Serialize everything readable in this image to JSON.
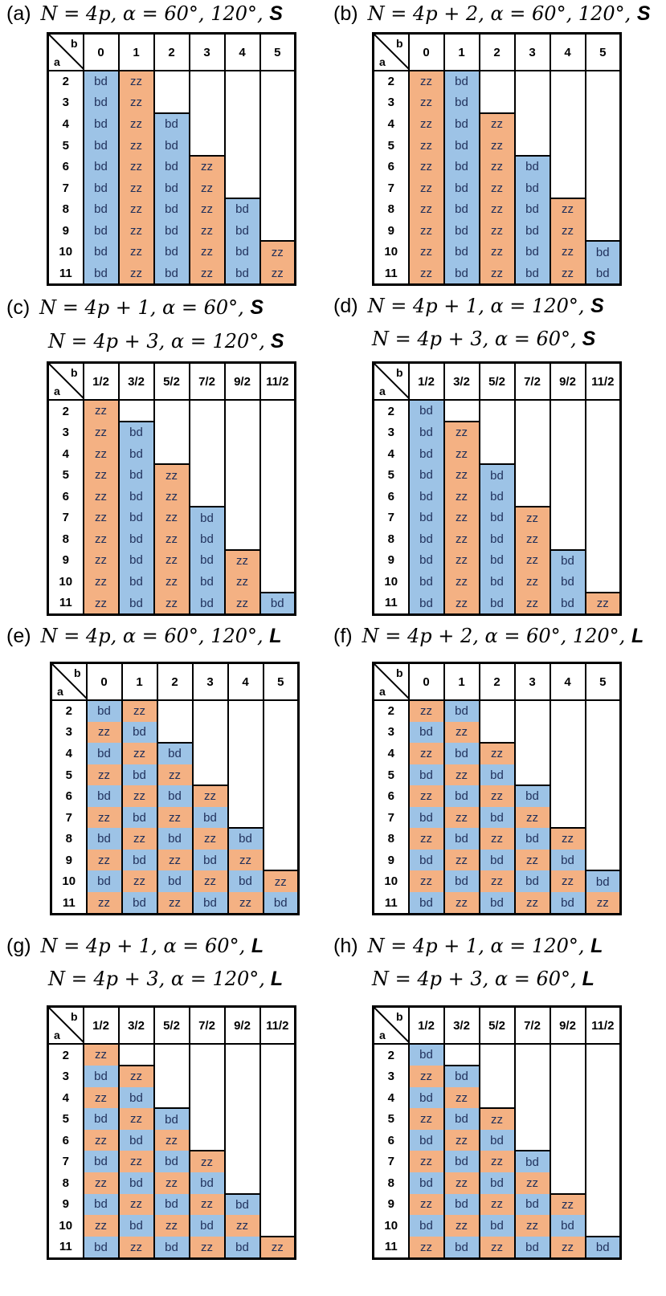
{
  "colors": {
    "bd": "#9dc3e6",
    "zz": "#f4b183",
    "empty": "#ffffff"
  },
  "rows": [
    "2",
    "3",
    "4",
    "5",
    "6",
    "7",
    "8",
    "9",
    "10",
    "11"
  ],
  "int_cols": [
    "0",
    "1",
    "2",
    "3",
    "4",
    "5"
  ],
  "half_cols": [
    "1/2",
    "3/2",
    "5/2",
    "7/2",
    "9/2",
    "11/2"
  ],
  "corner": {
    "a": "a",
    "b": "b"
  },
  "panels": [
    {
      "label": "(a)",
      "eq1": "N = 4p, α = 60°, 120°,",
      "suf1": "S",
      "eq2": "",
      "suf2": "",
      "cols": "int",
      "cells": [
        [
          "bd",
          "zz",
          "",
          "",
          "",
          ""
        ],
        [
          "bd",
          "zz",
          "",
          "",
          "",
          ""
        ],
        [
          "bd",
          "zz",
          "bd",
          "",
          "",
          ""
        ],
        [
          "bd",
          "zz",
          "bd",
          "",
          "",
          ""
        ],
        [
          "bd",
          "zz",
          "bd",
          "zz",
          "",
          ""
        ],
        [
          "bd",
          "zz",
          "bd",
          "zz",
          "",
          ""
        ],
        [
          "bd",
          "zz",
          "bd",
          "zz",
          "bd",
          ""
        ],
        [
          "bd",
          "zz",
          "bd",
          "zz",
          "bd",
          ""
        ],
        [
          "bd",
          "zz",
          "bd",
          "zz",
          "bd",
          "zz"
        ],
        [
          "bd",
          "zz",
          "bd",
          "zz",
          "bd",
          "zz"
        ]
      ]
    },
    {
      "label": "(b)",
      "eq1": "N = 4p + 2, α = 60°, 120°,",
      "suf1": "S",
      "eq2": "",
      "suf2": "",
      "cols": "int",
      "cells": [
        [
          "zz",
          "bd",
          "",
          "",
          "",
          ""
        ],
        [
          "zz",
          "bd",
          "",
          "",
          "",
          ""
        ],
        [
          "zz",
          "bd",
          "zz",
          "",
          "",
          ""
        ],
        [
          "zz",
          "bd",
          "zz",
          "",
          "",
          ""
        ],
        [
          "zz",
          "bd",
          "zz",
          "bd",
          "",
          ""
        ],
        [
          "zz",
          "bd",
          "zz",
          "bd",
          "",
          ""
        ],
        [
          "zz",
          "bd",
          "zz",
          "bd",
          "zz",
          ""
        ],
        [
          "zz",
          "bd",
          "zz",
          "bd",
          "zz",
          ""
        ],
        [
          "zz",
          "bd",
          "zz",
          "bd",
          "zz",
          "bd"
        ],
        [
          "zz",
          "bd",
          "zz",
          "bd",
          "zz",
          "bd"
        ]
      ]
    },
    {
      "label": "(c)",
      "eq1": "N = 4p + 1, α = 60°,",
      "suf1": "S",
      "eq2": "N = 4p + 3, α = 120°,",
      "suf2": "S",
      "cols": "half",
      "cells": [
        [
          "zz",
          "",
          "",
          "",
          "",
          ""
        ],
        [
          "zz",
          "bd",
          "",
          "",
          "",
          ""
        ],
        [
          "zz",
          "bd",
          "",
          "",
          "",
          ""
        ],
        [
          "zz",
          "bd",
          "zz",
          "",
          "",
          ""
        ],
        [
          "zz",
          "bd",
          "zz",
          "",
          "",
          ""
        ],
        [
          "zz",
          "bd",
          "zz",
          "bd",
          "",
          ""
        ],
        [
          "zz",
          "bd",
          "zz",
          "bd",
          "",
          ""
        ],
        [
          "zz",
          "bd",
          "zz",
          "bd",
          "zz",
          ""
        ],
        [
          "zz",
          "bd",
          "zz",
          "bd",
          "zz",
          ""
        ],
        [
          "zz",
          "bd",
          "zz",
          "bd",
          "zz",
          "bd"
        ]
      ]
    },
    {
      "label": "(d)",
      "eq1": "N = 4p + 1, α = 120°,",
      "suf1": "S",
      "eq2": "N = 4p + 3, α = 60°,",
      "suf2": "S",
      "cols": "half",
      "cells": [
        [
          "bd",
          "",
          "",
          "",
          "",
          ""
        ],
        [
          "bd",
          "zz",
          "",
          "",
          "",
          ""
        ],
        [
          "bd",
          "zz",
          "",
          "",
          "",
          ""
        ],
        [
          "bd",
          "zz",
          "bd",
          "",
          "",
          ""
        ],
        [
          "bd",
          "zz",
          "bd",
          "",
          "",
          ""
        ],
        [
          "bd",
          "zz",
          "bd",
          "zz",
          "",
          ""
        ],
        [
          "bd",
          "zz",
          "bd",
          "zz",
          "",
          ""
        ],
        [
          "bd",
          "zz",
          "bd",
          "zz",
          "bd",
          ""
        ],
        [
          "bd",
          "zz",
          "bd",
          "zz",
          "bd",
          ""
        ],
        [
          "bd",
          "zz",
          "bd",
          "zz",
          "bd",
          "zz"
        ]
      ]
    },
    {
      "label": "(e)",
      "eq1": "N = 4p, α = 60°, 120°,",
      "suf1": "L",
      "eq2": "",
      "suf2": "",
      "cols": "int",
      "cells": [
        [
          "bd",
          "zz",
          "",
          "",
          "",
          ""
        ],
        [
          "zz",
          "bd",
          "",
          "",
          "",
          ""
        ],
        [
          "bd",
          "zz",
          "bd",
          "",
          "",
          ""
        ],
        [
          "zz",
          "bd",
          "zz",
          "",
          "",
          ""
        ],
        [
          "bd",
          "zz",
          "bd",
          "zz",
          "",
          ""
        ],
        [
          "zz",
          "bd",
          "zz",
          "bd",
          "",
          ""
        ],
        [
          "bd",
          "zz",
          "bd",
          "zz",
          "bd",
          ""
        ],
        [
          "zz",
          "bd",
          "zz",
          "bd",
          "zz",
          ""
        ],
        [
          "bd",
          "zz",
          "bd",
          "zz",
          "bd",
          "zz"
        ],
        [
          "zz",
          "bd",
          "zz",
          "bd",
          "zz",
          "bd"
        ]
      ]
    },
    {
      "label": "(f)",
      "eq1": "N = 4p + 2, α = 60°, 120°,",
      "suf1": "L",
      "eq2": "",
      "suf2": "",
      "cols": "int",
      "cells": [
        [
          "zz",
          "bd",
          "",
          "",
          "",
          ""
        ],
        [
          "bd",
          "zz",
          "",
          "",
          "",
          ""
        ],
        [
          "zz",
          "bd",
          "zz",
          "",
          "",
          ""
        ],
        [
          "bd",
          "zz",
          "bd",
          "",
          "",
          ""
        ],
        [
          "zz",
          "bd",
          "zz",
          "bd",
          "",
          ""
        ],
        [
          "bd",
          "zz",
          "bd",
          "zz",
          "",
          ""
        ],
        [
          "zz",
          "bd",
          "zz",
          "bd",
          "zz",
          ""
        ],
        [
          "bd",
          "zz",
          "bd",
          "zz",
          "bd",
          ""
        ],
        [
          "zz",
          "bd",
          "zz",
          "bd",
          "zz",
          "bd"
        ],
        [
          "bd",
          "zz",
          "bd",
          "zz",
          "bd",
          "zz"
        ]
      ]
    },
    {
      "label": "(g)",
      "eq1": "N = 4p + 1, α = 60°,",
      "suf1": "L",
      "eq2": "N = 4p + 3, α = 120°,",
      "suf2": "L",
      "cols": "half",
      "cells": [
        [
          "zz",
          "",
          "",
          "",
          "",
          ""
        ],
        [
          "bd",
          "zz",
          "",
          "",
          "",
          ""
        ],
        [
          "zz",
          "bd",
          "",
          "",
          "",
          ""
        ],
        [
          "bd",
          "zz",
          "bd",
          "",
          "",
          ""
        ],
        [
          "zz",
          "bd",
          "zz",
          "",
          "",
          ""
        ],
        [
          "bd",
          "zz",
          "bd",
          "zz",
          "",
          ""
        ],
        [
          "zz",
          "bd",
          "zz",
          "bd",
          "",
          ""
        ],
        [
          "bd",
          "zz",
          "bd",
          "zz",
          "bd",
          ""
        ],
        [
          "zz",
          "bd",
          "zz",
          "bd",
          "zz",
          ""
        ],
        [
          "bd",
          "zz",
          "bd",
          "zz",
          "bd",
          "zz"
        ]
      ]
    },
    {
      "label": "(h)",
      "eq1": "N = 4p + 1, α = 120°,",
      "suf1": "L",
      "eq2": "N = 4p + 3, α = 60°,",
      "suf2": "L",
      "cols": "half",
      "cells": [
        [
          "bd",
          "",
          "",
          "",
          "",
          ""
        ],
        [
          "zz",
          "bd",
          "",
          "",
          "",
          ""
        ],
        [
          "bd",
          "zz",
          "",
          "",
          "",
          ""
        ],
        [
          "zz",
          "bd",
          "zz",
          "",
          "",
          ""
        ],
        [
          "bd",
          "zz",
          "bd",
          "",
          "",
          ""
        ],
        [
          "zz",
          "bd",
          "zz",
          "bd",
          "",
          ""
        ],
        [
          "bd",
          "zz",
          "bd",
          "zz",
          "",
          ""
        ],
        [
          "zz",
          "bd",
          "zz",
          "bd",
          "zz",
          ""
        ],
        [
          "bd",
          "zz",
          "bd",
          "zz",
          "bd",
          ""
        ],
        [
          "zz",
          "bd",
          "zz",
          "bd",
          "zz",
          "bd"
        ]
      ]
    }
  ]
}
